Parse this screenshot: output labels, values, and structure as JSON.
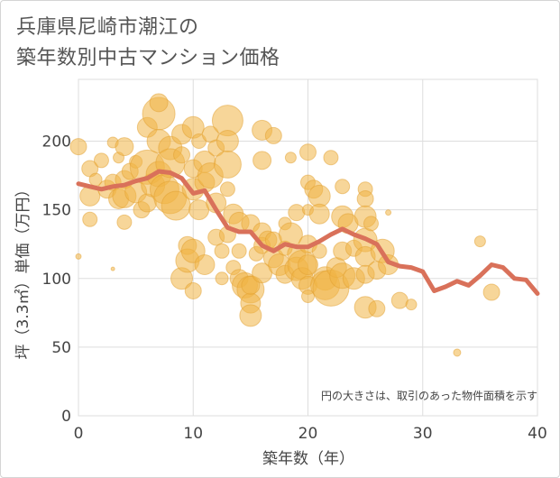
{
  "header": {
    "title_line1": "兵庫県尼崎市潮江の",
    "title_line2": "築年数別中古マンション価格"
  },
  "chart_data": {
    "type": "scatter",
    "title": "兵庫県尼崎市潮江の築年数別中古マンション価格",
    "xlabel": "築年数（年）",
    "ylabel": "坪（3.3㎡）単価（万円）",
    "xlim": [
      0,
      40
    ],
    "ylim": [
      0,
      245
    ],
    "xticks": [
      0,
      10,
      20,
      30,
      40
    ],
    "yticks": [
      0,
      50,
      100,
      150,
      200
    ],
    "grid": true,
    "annotation": "円の大きさは、取引のあった物件面積を示す",
    "colors": {
      "bubble": "#f0b445",
      "bubble_edge": "#e2a030",
      "line": "#d9715a",
      "grid": "#dddddd"
    },
    "series": [
      {
        "kind": "bubbles",
        "points": [
          [
            0,
            196,
            9
          ],
          [
            0,
            116,
            3
          ],
          [
            1,
            180,
            9
          ],
          [
            1,
            160,
            11
          ],
          [
            1,
            143,
            8
          ],
          [
            1.5,
            172,
            7
          ],
          [
            2,
            186,
            8
          ],
          [
            2.5,
            165,
            10
          ],
          [
            3,
            199,
            6
          ],
          [
            3,
            170,
            9
          ],
          [
            3,
            107,
            2
          ],
          [
            3.5,
            158,
            11
          ],
          [
            3.5,
            188,
            6
          ],
          [
            4,
            196,
            10
          ],
          [
            4,
            172,
            10
          ],
          [
            4,
            160,
            13
          ],
          [
            4,
            141,
            8
          ],
          [
            4.5,
            178,
            9
          ],
          [
            5,
            185,
            7
          ],
          [
            5,
            163,
            12
          ],
          [
            5.5,
            150,
            9
          ],
          [
            6,
            210,
            11
          ],
          [
            6,
            181,
            19
          ],
          [
            6,
            155,
            10
          ],
          [
            6.5,
            168,
            13
          ],
          [
            7,
            220,
            18
          ],
          [
            7,
            228,
            10
          ],
          [
            7,
            200,
            13
          ],
          [
            7,
            176,
            14
          ],
          [
            7.5,
            165,
            16
          ],
          [
            8,
            195,
            13
          ],
          [
            8,
            184,
            16
          ],
          [
            8,
            159,
            18
          ],
          [
            8.5,
            153,
            16
          ],
          [
            9,
            205,
            11
          ],
          [
            9,
            190,
            9
          ],
          [
            9,
            100,
            12
          ],
          [
            9.5,
            124,
            10
          ],
          [
            9.5,
            113,
            13
          ],
          [
            10,
            210,
            12
          ],
          [
            10,
            180,
            10
          ],
          [
            10,
            165,
            12
          ],
          [
            10,
            120,
            13
          ],
          [
            10,
            91,
            9
          ],
          [
            10.5,
            200,
            8
          ],
          [
            10.5,
            150,
            11
          ],
          [
            11,
            185,
            12
          ],
          [
            11,
            170,
            11
          ],
          [
            11,
            110,
            11
          ],
          [
            11.5,
            205,
            9
          ],
          [
            11.5,
            175,
            14
          ],
          [
            12,
            195,
            9
          ],
          [
            12,
            155,
            11
          ],
          [
            12,
            130,
            9
          ],
          [
            12.5,
            120,
            8
          ],
          [
            12.5,
            100,
            7
          ],
          [
            13,
            215,
            17
          ],
          [
            13,
            200,
            12
          ],
          [
            13,
            183,
            15
          ],
          [
            13,
            165,
            8
          ],
          [
            13,
            132,
            9
          ],
          [
            13.5,
            147,
            11
          ],
          [
            13.5,
            108,
            8
          ],
          [
            14,
            141,
            11
          ],
          [
            14,
            120,
            8
          ],
          [
            14,
            100,
            10
          ],
          [
            14.5,
            95,
            14
          ],
          [
            15,
            140,
            10
          ],
          [
            15,
            92,
            15
          ],
          [
            15,
            82,
            11
          ],
          [
            15,
            73,
            12
          ],
          [
            15,
            95,
            10
          ],
          [
            15.5,
            118,
            8
          ],
          [
            16,
            208,
            11
          ],
          [
            16,
            186,
            10
          ],
          [
            16,
            134,
            10
          ],
          [
            16,
            124,
            9
          ],
          [
            16,
            104,
            11
          ],
          [
            16.5,
            128,
            10
          ],
          [
            17,
            204,
            9
          ],
          [
            17,
            128,
            9
          ],
          [
            17,
            115,
            11
          ],
          [
            17.5,
            110,
            12
          ],
          [
            18,
            140,
            7
          ],
          [
            18,
            122,
            8
          ],
          [
            18,
            103,
            10
          ],
          [
            18.5,
            188,
            6
          ],
          [
            18.5,
            132,
            13
          ],
          [
            19,
            148,
            9
          ],
          [
            19,
            118,
            10
          ],
          [
            19,
            107,
            13
          ],
          [
            19.5,
            110,
            16
          ],
          [
            19.5,
            100,
            12
          ],
          [
            20,
            192,
            9
          ],
          [
            20,
            170,
            8
          ],
          [
            20,
            150,
            6
          ],
          [
            20,
            125,
            10
          ],
          [
            20,
            110,
            11
          ],
          [
            20,
            95,
            10
          ],
          [
            20,
            87,
            7
          ],
          [
            20.5,
            165,
            10
          ],
          [
            21,
            160,
            12
          ],
          [
            21,
            147,
            11
          ],
          [
            21,
            120,
            8
          ],
          [
            21.5,
            100,
            13
          ],
          [
            21.5,
            95,
            16
          ],
          [
            22,
            188,
            8
          ],
          [
            22,
            93,
            20
          ],
          [
            22.5,
            108,
            11
          ],
          [
            23,
            167,
            8
          ],
          [
            23,
            145,
            12
          ],
          [
            23,
            120,
            10
          ],
          [
            23,
            102,
            14
          ],
          [
            23.5,
            140,
            11
          ],
          [
            24,
            122,
            9
          ],
          [
            24,
            100,
            12
          ],
          [
            25,
            165,
            8
          ],
          [
            25,
            158,
            9
          ],
          [
            25,
            145,
            12
          ],
          [
            25,
            128,
            13
          ],
          [
            25,
            116,
            11
          ],
          [
            25,
            103,
            10
          ],
          [
            25,
            79,
            12
          ],
          [
            25.5,
            140,
            8
          ],
          [
            26,
            106,
            10
          ],
          [
            26,
            78,
            9
          ],
          [
            26.5,
            120,
            13
          ],
          [
            27,
            148,
            3
          ],
          [
            27,
            110,
            11
          ],
          [
            28,
            84,
            9
          ],
          [
            29,
            81,
            6
          ],
          [
            33,
            46,
            4
          ],
          [
            35,
            127,
            6
          ],
          [
            36,
            90,
            9
          ]
        ]
      },
      {
        "kind": "line",
        "name": "",
        "x": [
          0,
          1,
          2,
          3,
          4,
          5,
          6,
          7,
          8,
          9,
          10,
          11,
          12,
          13,
          14,
          15,
          16,
          17,
          18,
          19,
          20,
          21,
          22,
          23,
          24,
          25,
          26,
          27,
          28,
          29,
          30,
          31,
          32,
          33,
          34,
          35,
          36,
          37,
          38,
          39,
          40
        ],
        "y": [
          169,
          167,
          165,
          167,
          168,
          171,
          173,
          178,
          177,
          173,
          162,
          164,
          150,
          137,
          134,
          134,
          124,
          120,
          125,
          123,
          123,
          127,
          132,
          136,
          132,
          129,
          125,
          112,
          109,
          108,
          105,
          91,
          94,
          98,
          95,
          102,
          110,
          108,
          100,
          99,
          89
        ]
      }
    ]
  }
}
